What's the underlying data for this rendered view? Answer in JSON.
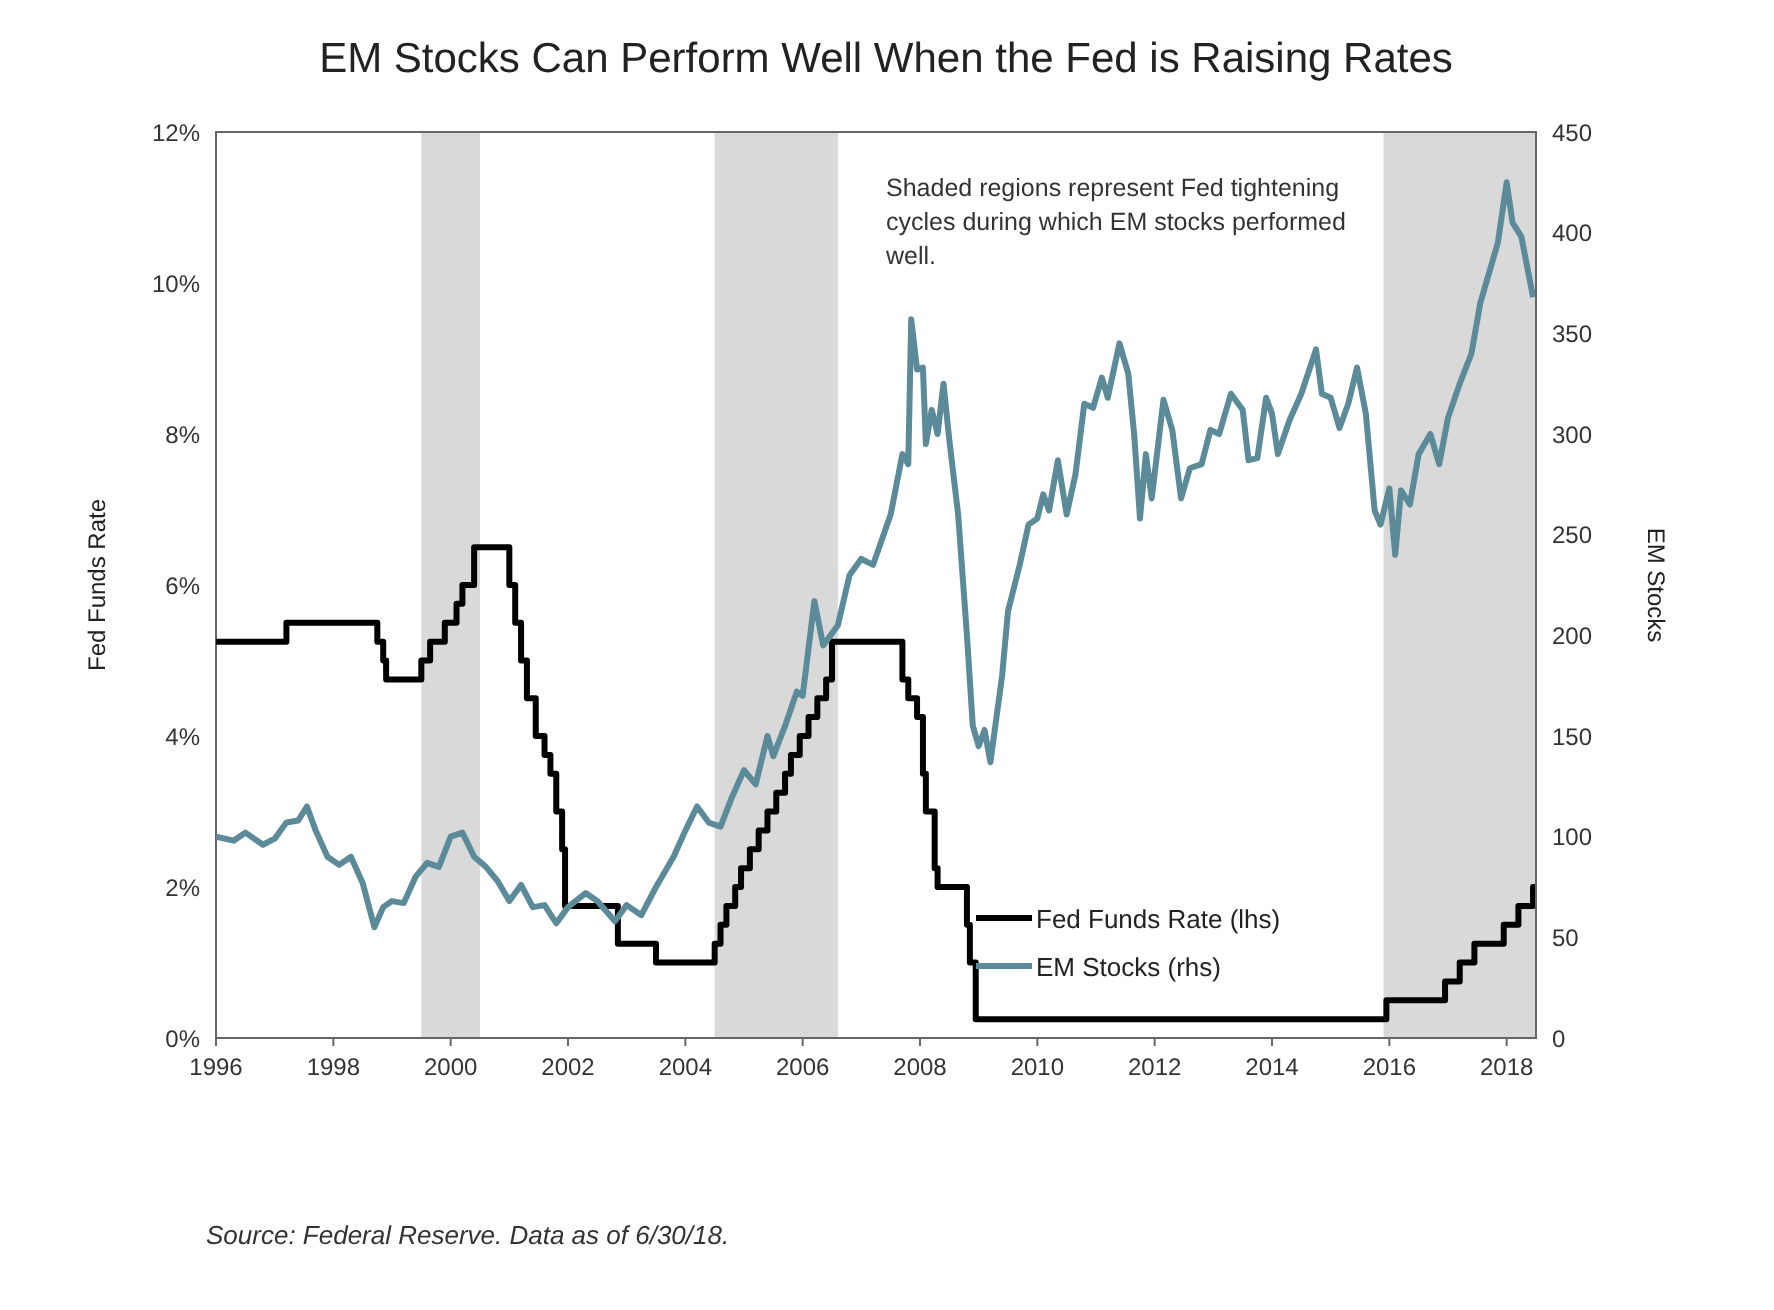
{
  "chart_data": {
    "type": "line",
    "title": "EM Stocks Can Perform Well When the Fed is Raising Rates",
    "ylabel": "Fed Funds Rate",
    "y2label": "EM Stocks",
    "annotations": [
      "Shaded regions represent Fed tightening cycles during which EM stocks performed well.",
      "Source: Federal Reserve. Data as of 6/30/18."
    ],
    "xlim": [
      1996,
      2018.5
    ],
    "xticks": [
      1996,
      1998,
      2000,
      2002,
      2004,
      2006,
      2008,
      2010,
      2012,
      2014,
      2016,
      2018
    ],
    "ylim": [
      0,
      12
    ],
    "yticks": [
      {
        "value": 0,
        "label": "0%"
      },
      {
        "value": 2,
        "label": "2%"
      },
      {
        "value": 4,
        "label": "4%"
      },
      {
        "value": 6,
        "label": "6%"
      },
      {
        "value": 8,
        "label": "8%"
      },
      {
        "value": 10,
        "label": "10%"
      },
      {
        "value": 12,
        "label": "12%"
      }
    ],
    "y2lim": [
      0,
      450
    ],
    "y2ticks": [
      0,
      50,
      100,
      150,
      200,
      250,
      300,
      350,
      400,
      450
    ],
    "grid": false,
    "legend": "bottom right",
    "marker": "none",
    "line_style": "solid",
    "bands": [
      {
        "axis": "x",
        "from": 1999.5,
        "to": 2000.5,
        "color": "#d9d9d9"
      },
      {
        "axis": "x",
        "from": 2004.5,
        "to": 2006.6,
        "color": "#d9d9d9"
      },
      {
        "axis": "x",
        "from": 2015.9,
        "to": 2018.5,
        "color": "#d9d9d9"
      }
    ],
    "series": [
      {
        "name": "Fed Funds Rate (lhs)",
        "type": "step",
        "color": "#000000",
        "x": [
          1996,
          1997.2,
          1998.75,
          1998.85,
          1998.9,
          1999.5,
          1999.65,
          1999.9,
          2000.1,
          2000.2,
          2000.4,
          2001.0,
          2001.1,
          2001.2,
          2001.3,
          2001.45,
          2001.6,
          2001.7,
          2001.8,
          2001.9,
          2001.95,
          2002.85,
          2003.5,
          2004.5,
          2004.6,
          2004.7,
          2004.85,
          2004.95,
          2005.1,
          2005.25,
          2005.4,
          2005.55,
          2005.7,
          2005.8,
          2005.95,
          2006.1,
          2006.25,
          2006.4,
          2006.5,
          2007.7,
          2007.8,
          2007.95,
          2008.05,
          2008.1,
          2008.25,
          2008.3,
          2008.8,
          2008.85,
          2008.95,
          2015.95,
          2016.95,
          2017.2,
          2017.45,
          2017.95,
          2018.2,
          2018.45,
          2018.5
        ],
        "values": [
          5.25,
          5.5,
          5.25,
          5.0,
          4.75,
          5.0,
          5.25,
          5.5,
          5.75,
          6.0,
          6.5,
          6.0,
          5.5,
          5.0,
          4.5,
          4.0,
          3.75,
          3.5,
          3.0,
          2.5,
          1.75,
          1.25,
          1.0,
          1.25,
          1.5,
          1.75,
          2.0,
          2.25,
          2.5,
          2.75,
          3.0,
          3.25,
          3.5,
          3.75,
          4.0,
          4.25,
          4.5,
          4.75,
          5.25,
          4.75,
          4.5,
          4.25,
          3.5,
          3.0,
          2.25,
          2.0,
          1.5,
          1.0,
          0.25,
          0.5,
          0.75,
          1.0,
          1.25,
          1.5,
          1.75,
          2.0,
          2.0
        ]
      },
      {
        "name": "EM Stocks (rhs)",
        "type": "line",
        "axis": "y2",
        "color": "#5b8a99",
        "x": [
          1996.0,
          1996.3,
          1996.5,
          1996.8,
          1997.0,
          1997.2,
          1997.4,
          1997.55,
          1997.7,
          1997.9,
          1998.1,
          1998.3,
          1998.5,
          1998.7,
          1998.85,
          1999.0,
          1999.2,
          1999.4,
          1999.6,
          1999.8,
          2000.0,
          2000.2,
          2000.4,
          2000.6,
          2000.8,
          2001.0,
          2001.2,
          2001.4,
          2001.6,
          2001.8,
          2002.0,
          2002.3,
          2002.5,
          2002.8,
          2003.0,
          2003.25,
          2003.5,
          2003.8,
          2004.0,
          2004.2,
          2004.4,
          2004.6,
          2004.8,
          2005.0,
          2005.2,
          2005.4,
          2005.5,
          2005.7,
          2005.9,
          2006.0,
          2006.2,
          2006.35,
          2006.6,
          2006.8,
          2007.0,
          2007.2,
          2007.5,
          2007.7,
          2007.8,
          2007.85,
          2007.95,
          2008.05,
          2008.1,
          2008.2,
          2008.3,
          2008.4,
          2008.5,
          2008.65,
          2008.8,
          2008.9,
          2009.0,
          2009.1,
          2009.2,
          2009.4,
          2009.5,
          2009.7,
          2009.85,
          2010.0,
          2010.1,
          2010.2,
          2010.35,
          2010.5,
          2010.65,
          2010.8,
          2010.95,
          2011.1,
          2011.2,
          2011.4,
          2011.55,
          2011.65,
          2011.75,
          2011.85,
          2011.95,
          2012.15,
          2012.3,
          2012.45,
          2012.6,
          2012.8,
          2012.95,
          2013.1,
          2013.3,
          2013.5,
          2013.6,
          2013.75,
          2013.9,
          2014.0,
          2014.1,
          2014.3,
          2014.5,
          2014.75,
          2014.85,
          2015.0,
          2015.15,
          2015.3,
          2015.45,
          2015.6,
          2015.75,
          2015.85,
          2016.0,
          2016.1,
          2016.2,
          2016.35,
          2016.5,
          2016.7,
          2016.85,
          2017.0,
          2017.2,
          2017.4,
          2017.55,
          2017.7,
          2017.85,
          2018.0,
          2018.1,
          2018.25,
          2018.45
        ],
        "values": [
          100,
          98,
          102,
          96,
          99,
          107,
          108,
          115,
          103,
          90,
          86,
          90,
          77,
          55,
          65,
          68,
          67,
          80,
          87,
          85,
          100,
          102,
          90,
          85,
          78,
          68,
          76,
          65,
          66,
          57,
          65,
          72,
          68,
          58,
          66,
          61,
          75,
          90,
          103,
          115,
          107,
          105,
          120,
          133,
          126,
          150,
          140,
          155,
          172,
          170,
          217,
          195,
          205,
          230,
          238,
          235,
          260,
          290,
          285,
          357,
          332,
          333,
          295,
          312,
          300,
          325,
          297,
          260,
          200,
          155,
          145,
          153,
          137,
          180,
          212,
          235,
          255,
          258,
          270,
          262,
          287,
          260,
          280,
          315,
          313,
          328,
          318,
          345,
          330,
          300,
          258,
          290,
          268,
          317,
          302,
          268,
          283,
          285,
          302,
          300,
          320,
          312,
          287,
          288,
          318,
          310,
          290,
          307,
          320,
          342,
          320,
          318,
          303,
          315,
          333,
          310,
          262,
          255,
          273,
          240,
          272,
          265,
          290,
          300,
          285,
          308,
          325,
          340,
          365,
          380,
          395,
          425,
          405,
          398,
          368
        ]
      }
    ]
  }
}
